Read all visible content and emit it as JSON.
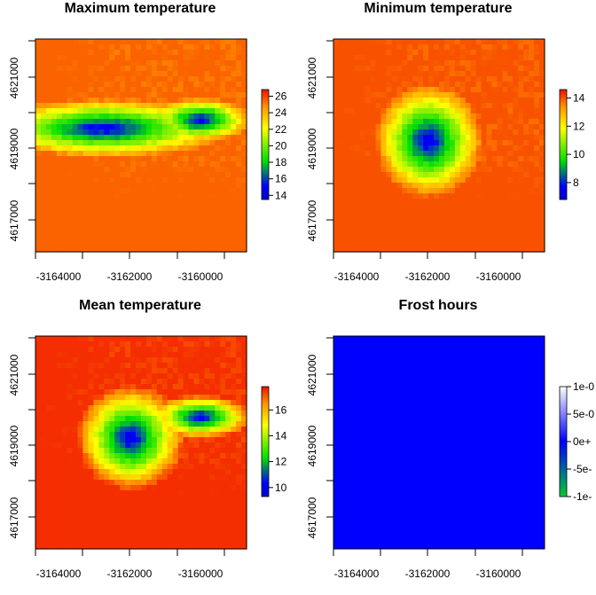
{
  "figure": {
    "background": "#ffffff"
  },
  "chart_data": [
    {
      "type": "heatmap",
      "title": "Maximum temperature",
      "xlabel": "",
      "ylabel": "",
      "x_ticks": [
        "-3164000",
        "-3162000",
        "-3160000"
      ],
      "x_tick_values": [
        -3164000,
        -3162000,
        -3160000
      ],
      "y_ticks": [
        "4617000",
        "4619000",
        "4621000"
      ],
      "y_tick_values": [
        4617000,
        4619000,
        4621000
      ],
      "xlim": [
        -3165000,
        -3158600
      ],
      "ylim": [
        4616000,
        4622100
      ],
      "colorbar": {
        "ticks": [
          "14",
          "16",
          "18",
          "20",
          "22",
          "24",
          "26"
        ],
        "tick_values": [
          14,
          16,
          18,
          20,
          22,
          24,
          26
        ],
        "range": [
          13.5,
          26.8
        ]
      },
      "pattern": {
        "cold_center": [
          0.32,
          0.42
        ],
        "cold_extent": [
          0.6,
          0.14
        ],
        "cold_value": 14,
        "cold_arm": true,
        "warm_edge_value": 25.5
      }
    },
    {
      "type": "heatmap",
      "title": "Minimum temperature",
      "xlabel": "",
      "ylabel": "",
      "x_ticks": [
        "-3164000",
        "-3162000",
        "-3160000"
      ],
      "x_tick_values": [
        -3164000,
        -3162000,
        -3160000
      ],
      "y_ticks": [
        "4617000",
        "4619000",
        "4621000"
      ],
      "y_tick_values": [
        4617000,
        4619000,
        4621000
      ],
      "xlim": [
        -3165000,
        -3158600
      ],
      "ylim": [
        4616000,
        4622100
      ],
      "colorbar": {
        "ticks": [
          "8",
          "10",
          "12",
          "14"
        ],
        "tick_values": [
          8,
          10,
          12,
          14
        ],
        "range": [
          6.8,
          14.6
        ]
      },
      "pattern": {
        "cold_center": [
          0.45,
          0.48
        ],
        "cold_extent": [
          0.26,
          0.27
        ],
        "cold_value": 7,
        "cold_arm": false,
        "warm_edge_value": 14
      }
    },
    {
      "type": "heatmap",
      "title": "Mean temperature",
      "xlabel": "",
      "ylabel": "",
      "x_ticks": [
        "-3164000",
        "-3162000",
        "-3160000"
      ],
      "x_tick_values": [
        -3164000,
        -3162000,
        -3160000
      ],
      "y_ticks": [
        "4617000",
        "4619000",
        "4621000"
      ],
      "y_tick_values": [
        4617000,
        4619000,
        4621000
      ],
      "xlim": [
        -3165000,
        -3158600
      ],
      "ylim": [
        4616000,
        4622100
      ],
      "colorbar": {
        "ticks": [
          "10",
          "12",
          "14",
          "16"
        ],
        "tick_values": [
          10,
          12,
          14,
          16
        ],
        "range": [
          9.3,
          17.8
        ]
      },
      "pattern": {
        "cold_center": [
          0.45,
          0.48
        ],
        "cold_extent": [
          0.26,
          0.25
        ],
        "cold_value": 9.5,
        "cold_arm": true,
        "warm_edge_value": 17.5
      }
    },
    {
      "type": "heatmap",
      "title": "Frost hours",
      "xlabel": "",
      "ylabel": "",
      "x_ticks": [
        "-3164000",
        "-3162000",
        "-3160000"
      ],
      "x_tick_values": [
        -3164000,
        -3162000,
        -3160000
      ],
      "y_ticks": [
        "4617000",
        "4619000",
        "4621000"
      ],
      "y_tick_values": [
        4617000,
        4619000,
        4621000
      ],
      "xlim": [
        -3165000,
        -3158600
      ],
      "ylim": [
        4616000,
        4622100
      ],
      "uniform_value": 0,
      "uniform_color": "#0000ff",
      "colorbar": {
        "ticks": [
          "1e-0",
          "5e-0",
          "0e+",
          "-5e-",
          "-1e-"
        ],
        "tick_values": [
          1,
          0.5,
          0,
          -0.5,
          -1
        ],
        "range": [
          -1,
          1
        ],
        "palette": [
          "#00cc33",
          "#0000ff",
          "#ffffff"
        ]
      }
    }
  ]
}
